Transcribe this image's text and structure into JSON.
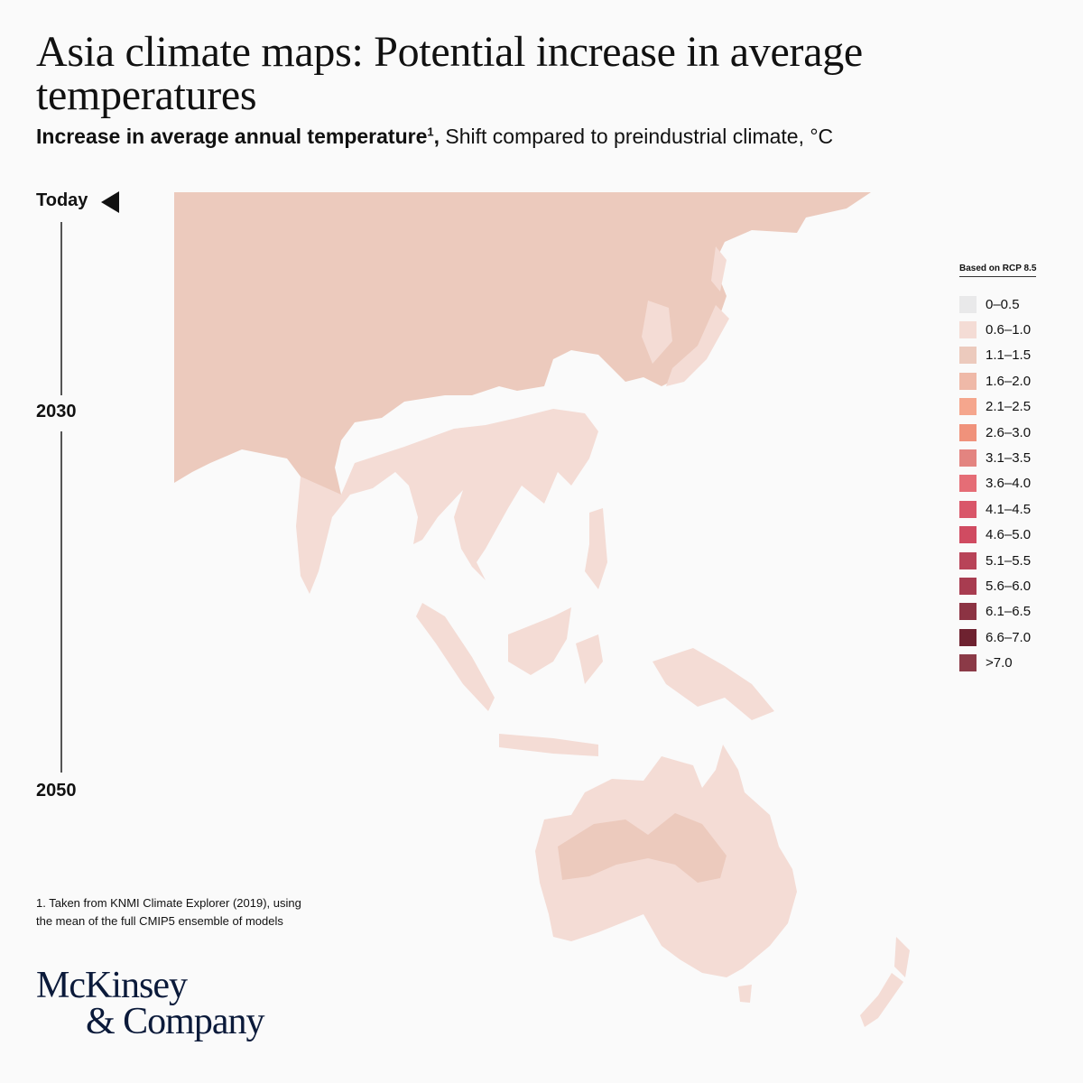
{
  "header": {
    "title": "Asia climate maps: Potential increase in average temperatures",
    "subtitle_bold": "Increase in average annual temperature",
    "subtitle_sup": "1",
    "subtitle_comma": ",",
    "subtitle_rest": "Shift compared to preindustrial climate, °C"
  },
  "timeline": {
    "today": "Today",
    "mid": "2030",
    "end": "2050"
  },
  "legend": {
    "title": "Based on RCP 8.5",
    "items": [
      {
        "label": "0–0.5",
        "color": "#e9e9ea"
      },
      {
        "label": "0.6–1.0",
        "color": "#f4dcd5"
      },
      {
        "label": "1.1–1.5",
        "color": "#eccabd"
      },
      {
        "label": "1.6–2.0",
        "color": "#efb9a8"
      },
      {
        "label": "2.1–2.5",
        "color": "#f5a68d"
      },
      {
        "label": "2.6–3.0",
        "color": "#f0927b"
      },
      {
        "label": "3.1–3.5",
        "color": "#e38480"
      },
      {
        "label": "3.6–4.0",
        "color": "#e56d76"
      },
      {
        "label": "4.1–4.5",
        "color": "#d95669"
      },
      {
        "label": "4.6–5.0",
        "color": "#d04b61"
      },
      {
        "label": "5.1–5.5",
        "color": "#b84358"
      },
      {
        "label": "5.6–6.0",
        "color": "#a83c50"
      },
      {
        "label": "6.1–6.5",
        "color": "#8c3343"
      },
      {
        "label": "6.6–7.0",
        "color": "#6e2230"
      },
      {
        "label": ">7.0",
        "color": "#8b3a47"
      }
    ]
  },
  "map": {
    "regions": [
      {
        "name": "north-asia",
        "color": "#eccabd"
      },
      {
        "name": "south-east-asia",
        "color": "#f4dcd5"
      },
      {
        "name": "australia",
        "color": "#f4dcd5"
      },
      {
        "name": "australia-interior",
        "color": "#eccabd"
      }
    ]
  },
  "footnote": {
    "line1": "1. Taken from KNMI Climate Explorer (2019), using",
    "line2": "the mean of the full CMIP5 ensemble of models"
  },
  "logo": {
    "line1": "McKinsey",
    "line2": "& Company"
  }
}
